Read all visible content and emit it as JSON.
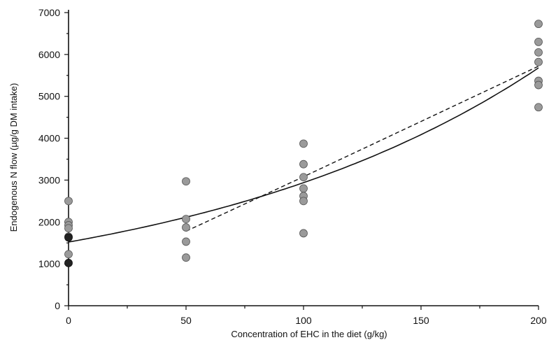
{
  "chart_data": {
    "type": "scatter",
    "title": "",
    "xlabel": "Concentration of EHC in the diet (g/kg)",
    "ylabel": "Endogenous N flow (µg/g DM intake)",
    "xlim": [
      0,
      200
    ],
    "ylim": [
      0,
      7000
    ],
    "x_ticks": [
      0,
      50,
      100,
      150,
      200
    ],
    "y_ticks": [
      0,
      1000,
      2000,
      3000,
      4000,
      5000,
      6000,
      7000
    ],
    "grid": false,
    "series": [
      {
        "marker": "grey-circle",
        "points": [
          {
            "x": 0,
            "y": 2500
          },
          {
            "x": 0,
            "y": 2000
          },
          {
            "x": 0,
            "y": 1920
          },
          {
            "x": 0,
            "y": 1850
          },
          {
            "x": 0,
            "y": 1650
          },
          {
            "x": 0,
            "y": 1230
          },
          {
            "x": 50,
            "y": 2970
          },
          {
            "x": 50,
            "y": 2070
          },
          {
            "x": 50,
            "y": 1870
          },
          {
            "x": 50,
            "y": 1530
          },
          {
            "x": 50,
            "y": 1150
          },
          {
            "x": 100,
            "y": 3870
          },
          {
            "x": 100,
            "y": 3380
          },
          {
            "x": 100,
            "y": 3070
          },
          {
            "x": 100,
            "y": 2800
          },
          {
            "x": 100,
            "y": 2620
          },
          {
            "x": 100,
            "y": 2500
          },
          {
            "x": 100,
            "y": 1730
          },
          {
            "x": 200,
            "y": 6730
          },
          {
            "x": 200,
            "y": 6300
          },
          {
            "x": 200,
            "y": 6050
          },
          {
            "x": 200,
            "y": 5820
          },
          {
            "x": 200,
            "y": 5370
          },
          {
            "x": 200,
            "y": 5270
          },
          {
            "x": 200,
            "y": 4740
          }
        ]
      },
      {
        "marker": "black-circle",
        "points": [
          {
            "x": 0,
            "y": 1630
          },
          {
            "x": 0,
            "y": 1020
          }
        ]
      }
    ],
    "fits": [
      {
        "style": "solid",
        "model": "curve",
        "points": [
          [
            0,
            1520
          ],
          [
            50,
            2050
          ],
          [
            100,
            2900
          ],
          [
            150,
            4070
          ],
          [
            200,
            5680
          ]
        ]
      },
      {
        "style": "dashed",
        "model": "piecewise-linear",
        "points": [
          [
            50,
            1780
          ],
          [
            100,
            3080
          ],
          [
            200,
            5720
          ]
        ]
      }
    ]
  }
}
